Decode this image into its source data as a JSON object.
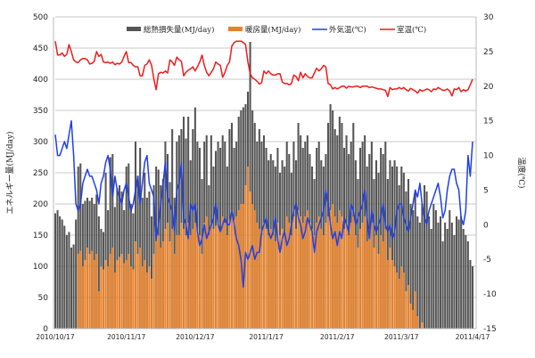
{
  "chart_data": {
    "type": "bar+line",
    "title": "",
    "ylabel": "エネルギー量(MJ/day)",
    "y2label": "温度(℃)",
    "ylim": [
      0,
      500
    ],
    "y2lim": [
      -15,
      30
    ],
    "yticks": [
      "0",
      "50",
      "100",
      "150",
      "200",
      "250",
      "300",
      "350",
      "400",
      "450",
      "500"
    ],
    "y2ticks": [
      "-15",
      "-10",
      "-5",
      "0",
      "5",
      "10",
      "15",
      "20",
      "25",
      "30"
    ],
    "xticks": [
      "2010/10/17",
      "2010/11/17",
      "2010/12/17",
      "2011/1/17",
      "2011/2/17",
      "2011/3/17",
      "2011/4/17"
    ],
    "xtick_days": [
      0,
      31,
      61,
      92,
      123,
      151,
      182
    ],
    "days": 183,
    "grid": true,
    "legend_position": "top",
    "series": [
      {
        "name": "総熱損失量(MJ/day)",
        "type": "bar",
        "color": "#555555",
        "values": [
          185,
          190,
          180,
          175,
          165,
          150,
          155,
          130,
          135,
          175,
          260,
          265,
          200,
          205,
          210,
          205,
          210,
          200,
          215,
          180,
          160,
          155,
          250,
          190,
          275,
          280,
          195,
          225,
          230,
          220,
          190,
          260,
          265,
          200,
          185,
          300,
          245,
          290,
          210,
          250,
          210,
          220,
          180,
          230,
          260,
          255,
          230,
          240,
          300,
          280,
          235,
          320,
          210,
          300,
          310,
          320,
          340,
          305,
          340,
          270,
          320,
          355,
          300,
          290,
          240,
          300,
          310,
          230,
          310,
          260,
          285,
          300,
          290,
          310,
          300,
          260,
          320,
          330,
          290,
          300,
          340,
          350,
          355,
          360,
          380,
          460,
          350,
          330,
          300,
          320,
          300,
          310,
          290,
          270,
          280,
          270,
          260,
          290,
          250,
          270,
          260,
          300,
          280,
          250,
          300,
          270,
          330,
          310,
          290,
          300,
          310,
          280,
          260,
          240,
          290,
          300,
          270,
          260,
          280,
          330,
          360,
          350,
          320,
          310,
          340,
          330,
          290,
          310,
          280,
          300,
          330,
          270,
          240,
          290,
          300,
          310,
          260,
          280,
          300,
          240,
          270,
          250,
          290,
          280,
          300,
          240,
          270,
          260,
          270,
          260,
          230,
          260,
          250,
          220,
          240,
          200,
          190,
          220,
          180,
          170,
          200,
          230,
          220,
          180,
          160,
          200,
          190,
          170,
          180,
          140,
          170,
          160,
          190,
          170,
          150,
          180,
          175,
          180,
          160,
          150,
          140,
          110,
          100
        ]
      },
      {
        "name": "暖房量(MJ/day)",
        "type": "bar",
        "color": "#e8822a",
        "values": [
          0,
          0,
          0,
          0,
          0,
          0,
          0,
          0,
          0,
          0,
          120,
          125,
          100,
          110,
          130,
          120,
          125,
          110,
          120,
          60,
          100,
          95,
          110,
          100,
          120,
          130,
          90,
          110,
          115,
          120,
          105,
          110,
          120,
          100,
          95,
          140,
          120,
          130,
          100,
          110,
          90,
          100,
          80,
          120,
          140,
          150,
          130,
          140,
          160,
          170,
          140,
          160,
          120,
          150,
          150,
          170,
          160,
          150,
          170,
          150,
          160,
          170,
          160,
          150,
          120,
          170,
          180,
          150,
          170,
          160,
          165,
          170,
          160,
          180,
          170,
          150,
          175,
          190,
          175,
          180,
          190,
          200,
          200,
          230,
          260,
          220,
          200,
          190,
          170,
          160,
          150,
          170,
          160,
          150,
          160,
          150,
          140,
          170,
          150,
          160,
          150,
          180,
          170,
          150,
          180,
          160,
          190,
          180,
          170,
          180,
          190,
          170,
          160,
          150,
          170,
          180,
          160,
          150,
          170,
          180,
          190,
          200,
          180,
          170,
          190,
          180,
          160,
          170,
          150,
          170,
          180,
          150,
          130,
          160,
          170,
          180,
          140,
          160,
          170,
          130,
          150,
          120,
          150,
          140,
          160,
          110,
          130,
          110,
          100,
          90,
          80,
          100,
          90,
          60,
          70,
          40,
          30,
          60,
          20,
          0,
          10,
          0,
          0,
          0,
          0,
          0,
          0,
          0,
          0,
          0,
          0,
          0,
          0,
          0,
          0,
          0,
          0,
          0,
          0,
          0,
          0,
          0,
          0
        ]
      },
      {
        "name": "外気温(℃)",
        "type": "line",
        "axis": "right",
        "color": "#1f3fe8",
        "values": [
          13,
          10,
          10,
          11,
          12,
          11,
          13,
          15,
          10,
          3,
          2,
          3,
          6,
          7,
          8,
          7,
          7,
          6,
          5,
          3,
          6,
          7,
          9,
          10,
          8,
          4,
          7,
          5,
          4,
          3,
          5,
          6,
          4,
          2,
          3,
          5,
          7,
          3,
          6,
          9,
          10,
          6,
          5,
          4,
          -2,
          0,
          3,
          6,
          9,
          4,
          3,
          2,
          -1,
          5,
          6,
          9,
          1,
          0,
          -2,
          3,
          2,
          3,
          -1,
          -3,
          -2,
          0,
          -2,
          -1,
          0,
          1,
          3,
          0,
          -1,
          0,
          1,
          0,
          0,
          2,
          0,
          -2,
          -3,
          -5,
          -9,
          -4,
          -5,
          -4,
          -3,
          -5,
          -4,
          -4,
          -1,
          0,
          1,
          -1,
          -2,
          -1,
          1,
          -2,
          -4,
          -2,
          -1,
          -3,
          -2,
          0,
          2,
          3,
          1,
          0,
          -2,
          -1,
          1,
          0,
          -1,
          -4,
          -1,
          0,
          1,
          2,
          5,
          3,
          0,
          -2,
          -1,
          -3,
          -1,
          -2,
          1,
          0,
          -1,
          3,
          2,
          0,
          1,
          2,
          3,
          5,
          1,
          -2,
          2,
          0,
          -1,
          0,
          1,
          3,
          0,
          -1,
          0,
          -2,
          -1,
          2,
          3,
          3,
          1,
          0,
          -1,
          1,
          3,
          5,
          4,
          6,
          3,
          1,
          0,
          2,
          3,
          4,
          5,
          6,
          4,
          1,
          2,
          5,
          7,
          8,
          8,
          6,
          5,
          1,
          0,
          2,
          10,
          7,
          12
        ]
      },
      {
        "name": "室温(℃)",
        "type": "line",
        "axis": "right",
        "color": "#ee1c1c",
        "values": [
          26.5,
          24.5,
          24.5,
          24.8,
          24.3,
          24.6,
          26,
          25,
          23.8,
          23.5,
          23.4,
          23.8,
          24,
          24,
          23.8,
          23.2,
          23.3,
          23.6,
          25,
          24.3,
          24.6,
          23.5,
          23.4,
          23.5,
          23.3,
          23.5,
          23.1,
          23.3,
          23.2,
          23.5,
          24.3,
          25,
          23.4,
          23.4,
          23,
          22.8,
          22.8,
          21.5,
          21.5,
          23,
          23.2,
          23.8,
          23,
          21,
          19.5,
          21.8,
          22,
          21.9,
          22.2,
          21.9,
          23.8,
          23.5,
          23,
          24.2,
          23.8,
          23.6,
          21.5,
          22,
          22.3,
          22.5,
          22.8,
          22.2,
          22.8,
          23.5,
          24.5,
          23,
          22,
          21.5,
          22,
          22.5,
          23.5,
          23.2,
          23,
          21.3,
          22,
          23,
          23.5,
          25.8,
          26.3,
          26.5,
          26.5,
          26.5,
          26.3,
          26,
          23.5,
          21.8,
          21.2,
          21,
          20.7,
          20.3,
          20.5,
          22.2,
          21.8,
          22.2,
          21.8,
          21.6,
          21.6,
          21.8,
          21.8,
          20.6,
          20.4,
          20.4,
          20.2,
          20.4,
          21.6,
          21.4,
          20.8,
          22,
          21.2,
          21.8,
          21.4,
          21.2,
          21.2,
          21.9,
          22.6,
          22.2,
          22.5,
          23,
          22.8,
          20.4,
          20.2,
          19.6,
          19.8,
          19.6,
          19.8,
          20,
          20,
          19.7,
          20,
          19.9,
          19.9,
          20,
          20,
          19.8,
          20,
          20,
          20,
          19.8,
          19.9,
          19.8,
          19.7,
          19.6,
          19.6,
          19.5,
          19.4,
          18.5,
          19.8,
          19.5,
          19.6,
          19.6,
          19.8,
          19.6,
          19.8,
          19.5,
          19.3,
          19.7,
          19.5,
          19.3,
          19,
          19.5,
          19.3,
          19.4,
          19.6,
          19.5,
          19.2,
          19.6,
          19.5,
          19.8,
          19.6,
          19.4,
          19.4,
          19.6,
          19.3,
          18.6,
          19.6,
          19.5,
          19.8,
          19.2,
          19.5,
          19.3,
          19.5,
          20.2,
          21
        ]
      }
    ]
  }
}
